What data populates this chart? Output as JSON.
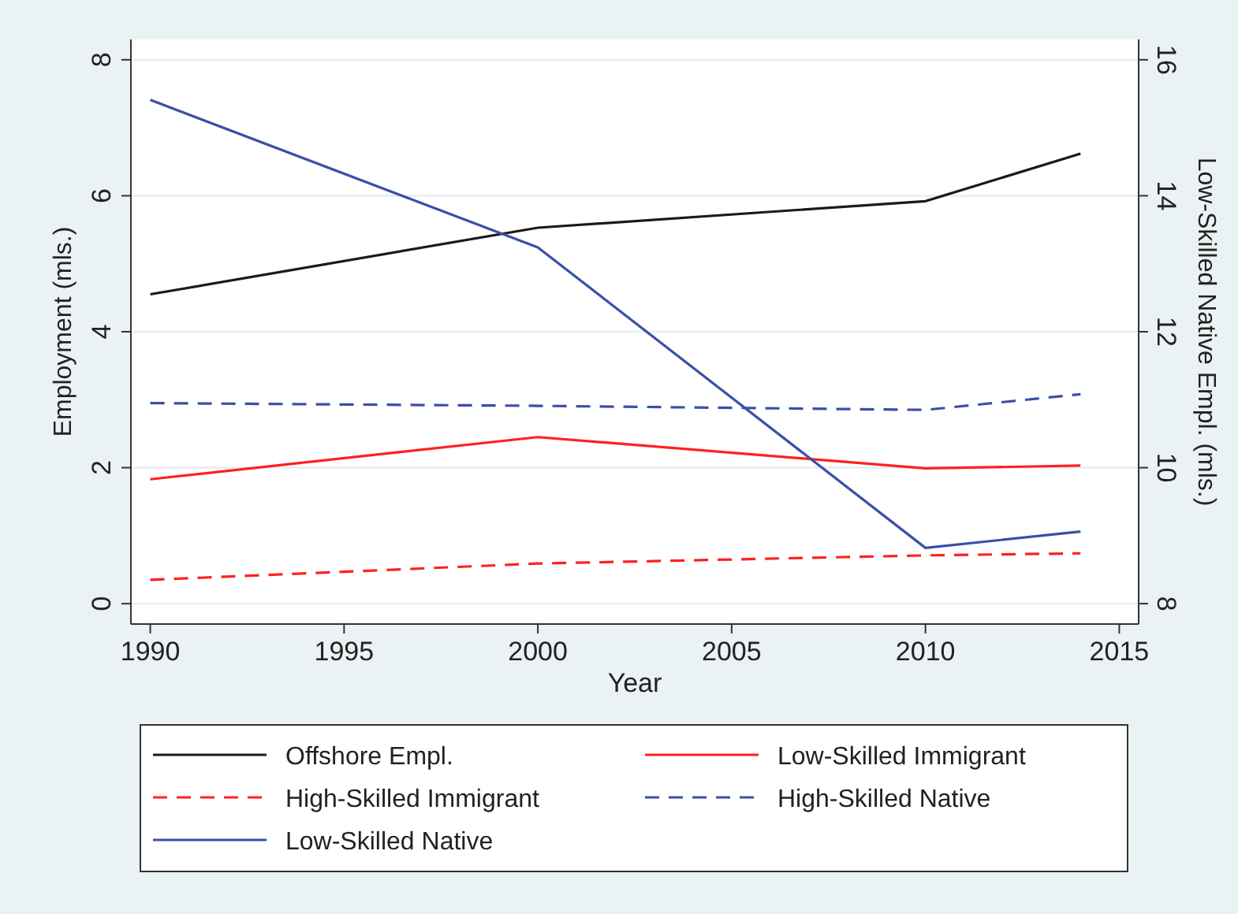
{
  "chart_data": {
    "type": "line",
    "xlabel": "Year",
    "ylabel": "Employment (mls.)",
    "y2label": "Low-Skilled Native Empl. (mls.)",
    "x": [
      1990,
      2000,
      2010,
      2014
    ],
    "series": [
      {
        "name": "Offshore Empl.",
        "color": "#1a1a1a",
        "values": [
          4.55,
          5.53,
          5.92,
          6.62
        ],
        "line_style": "solid"
      },
      {
        "name": "Low-Skilled Immigrant",
        "color": "#ff2020",
        "values": [
          1.83,
          2.45,
          1.99,
          2.03
        ],
        "line_style": "solid"
      },
      {
        "name": "High-Skilled Immigrant",
        "color": "#ff2020",
        "values": [
          0.35,
          0.59,
          0.71,
          0.74
        ],
        "line_style": "dashed"
      },
      {
        "name": "High-Skilled Native",
        "color": "#3a4fa8",
        "values": [
          2.95,
          2.91,
          2.85,
          3.08
        ],
        "line_style": "dashed"
      },
      {
        "name": "Low-Skilled Native",
        "color": "#3a4fa8",
        "values": [
          15.41,
          13.24,
          8.82,
          9.06
        ],
        "line_style": "solid",
        "axis": "y2"
      }
    ],
    "xlim": [
      1989.5,
      2015.5
    ],
    "xticks": [
      1990,
      1995,
      2000,
      2005,
      2010,
      2015
    ],
    "ylim": [
      -0.3,
      8.3
    ],
    "yticks": [
      0,
      2,
      4,
      6,
      8
    ],
    "y2lim": [
      7.7,
      16.3
    ],
    "y2ticks": [
      8,
      10,
      12,
      14,
      16
    ],
    "grid": "y",
    "legend": "bottom"
  }
}
